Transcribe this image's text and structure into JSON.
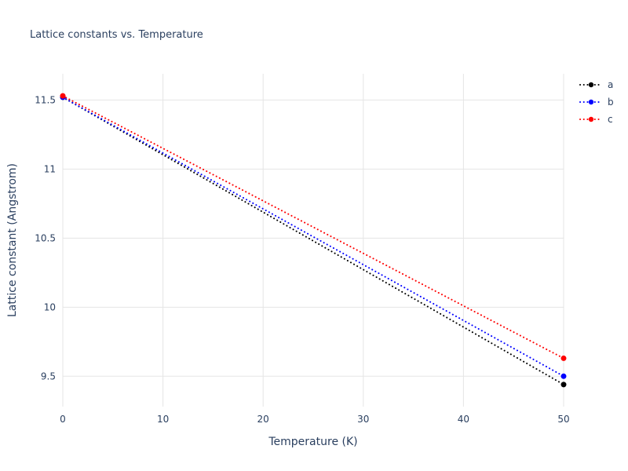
{
  "chart_data": {
    "type": "line",
    "title": "Lattice constants vs. Temperature",
    "xlabel": "Temperature (K)",
    "ylabel": "Lattice constant (Angstrom)",
    "x": [
      0,
      50
    ],
    "series": [
      {
        "name": "a",
        "color": "#000000",
        "values": [
          11.52,
          9.44
        ]
      },
      {
        "name": "b",
        "color": "#0000ff",
        "values": [
          11.52,
          9.5
        ]
      },
      {
        "name": "c",
        "color": "#ff0000",
        "values": [
          11.53,
          9.63
        ]
      }
    ],
    "xlim": [
      0,
      50
    ],
    "ylim": [
      9.28,
      11.69
    ],
    "xticks": [
      0,
      10,
      20,
      30,
      40,
      50
    ],
    "xtick_labels": [
      "0",
      "10",
      "20",
      "30",
      "40",
      "50"
    ],
    "yticks": [
      9.5,
      10,
      10.5,
      11,
      11.5
    ],
    "ytick_labels": [
      "9.5",
      "10",
      "10.5",
      "11",
      "11.5"
    ],
    "grid": true,
    "line_style": "dotted",
    "legend_position": "top-right",
    "colors": {
      "title": "#2a3f5f",
      "axis_label": "#2a3f5f",
      "tick_label": "#2a3f5f",
      "grid": "#e5e5e5",
      "background": "#ffffff"
    }
  }
}
